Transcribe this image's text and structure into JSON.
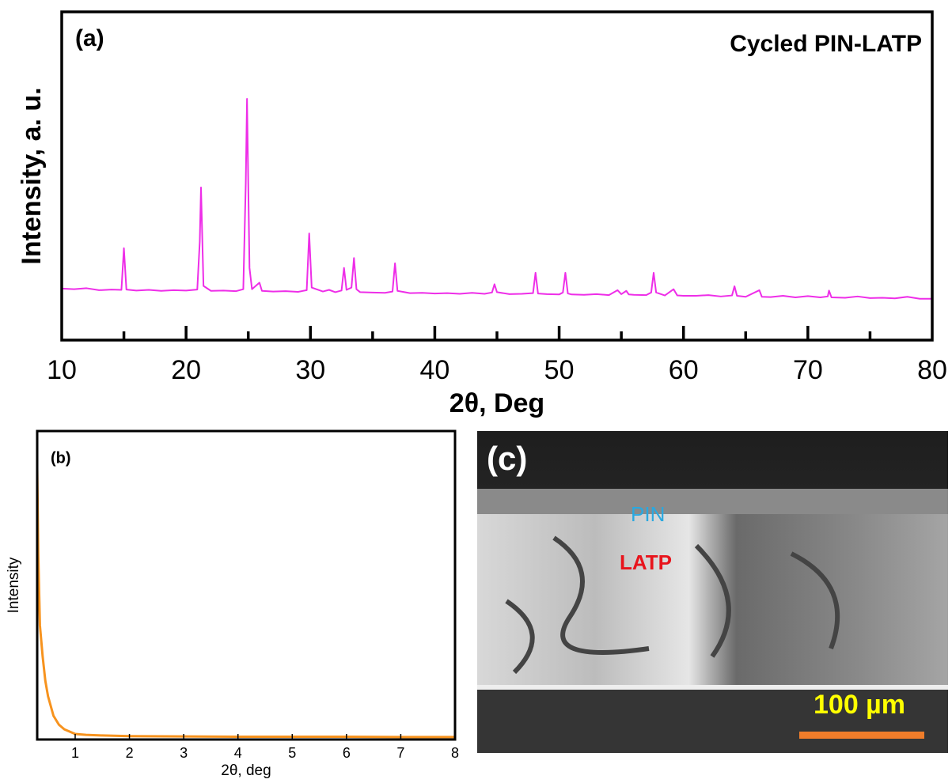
{
  "chart_data": [
    {
      "type": "line",
      "panel_label": "(a)",
      "title": "Cycled PIN-LATP",
      "xlabel": "2θ, Deg",
      "ylabel": "Intensity, a. u.",
      "x": [
        10,
        11,
        12,
        13,
        14,
        14.8,
        15.0,
        15.2,
        16,
        17,
        18,
        19,
        20,
        20.9,
        21.1,
        21.2,
        21.4,
        22,
        23,
        24,
        24.6,
        24.8,
        24.9,
        25.1,
        25.3,
        25.9,
        26.1,
        27,
        28,
        29,
        29.7,
        29.9,
        30.1,
        31,
        31.5,
        32,
        32.5,
        32.7,
        32.9,
        33.3,
        33.5,
        33.7,
        34,
        35,
        36,
        36.6,
        36.8,
        37,
        38,
        39,
        40,
        41,
        42,
        43,
        44,
        44.6,
        44.8,
        45,
        46,
        47,
        47.9,
        48.1,
        48.3,
        49,
        50,
        50.3,
        50.5,
        50.7,
        51,
        52,
        53,
        54,
        54.7,
        55,
        55.4,
        55.6,
        56,
        57,
        57.4,
        57.6,
        57.8,
        58.5,
        59.2,
        59.5,
        60,
        61,
        62,
        63,
        63.9,
        64.1,
        64.3,
        65,
        66.1,
        66.3,
        67,
        68,
        69,
        70,
        71,
        71.6,
        71.7,
        71.9,
        73,
        74,
        75,
        76,
        77,
        78,
        79,
        80
      ],
      "values": [
        15.7,
        15.5,
        15.8,
        15.2,
        15.4,
        15.3,
        28,
        15.4,
        15.1,
        15.3,
        15.0,
        15.2,
        15.1,
        15.4,
        30,
        46.5,
        16.5,
        15.0,
        15.1,
        14.9,
        15.5,
        48,
        73.5,
        22,
        15.5,
        17.5,
        15,
        14.8,
        14.9,
        14.7,
        15.2,
        32.5,
        16,
        14.8,
        15.3,
        14.6,
        15.1,
        22,
        15.3,
        16,
        25,
        15.5,
        14.6,
        14.5,
        14.4,
        14.8,
        23.4,
        15,
        14.3,
        14.4,
        14.2,
        14.3,
        14.1,
        14.4,
        14.1,
        14.5,
        17,
        14.6,
        14.0,
        14.1,
        14.3,
        20.5,
        14.2,
        14.0,
        13.9,
        14.5,
        20.5,
        14.2,
        13.9,
        13.8,
        14.0,
        13.7,
        15.2,
        14,
        15.0,
        13.9,
        13.8,
        13.7,
        14.5,
        20.5,
        14.5,
        13.6,
        15.5,
        13.6,
        13.5,
        13.5,
        13.7,
        13.3,
        13.6,
        16.4,
        13.5,
        13.2,
        15.2,
        13.2,
        13.1,
        13.5,
        13.0,
        13.4,
        13.0,
        13.3,
        15.1,
        13.0,
        12.9,
        13.3,
        12.8,
        12.9,
        12.7,
        13.2,
        12.6,
        12.6
      ],
      "color": "#ee2ee8",
      "xlim": [
        10,
        80
      ],
      "ylim": [
        0,
        100
      ],
      "xticks": [
        10,
        20,
        30,
        40,
        50,
        60,
        70,
        80
      ],
      "xminorticks": [
        15,
        25,
        35,
        45,
        55,
        65,
        75
      ]
    },
    {
      "type": "line",
      "panel_label": "(b)",
      "xlabel": "2θ, deg",
      "ylabel": "Intensity",
      "x": [
        0.3,
        0.32,
        0.35,
        0.4,
        0.45,
        0.5,
        0.6,
        0.7,
        0.8,
        1.0,
        1.2,
        1.5,
        2,
        3,
        4,
        5,
        6,
        7,
        8
      ],
      "values": [
        88,
        60,
        37,
        27,
        19,
        14,
        7.7,
        4.8,
        3.3,
        1.8,
        1.5,
        1.3,
        1.1,
        1.0,
        0.9,
        0.9,
        0.9,
        0.8,
        0.8
      ],
      "color": "#f7931e",
      "xlim": [
        0.3,
        8
      ],
      "ylim": [
        0,
        100
      ],
      "xticks": [
        1,
        2,
        3,
        4,
        5,
        6,
        7,
        8
      ]
    }
  ],
  "sem_image": {
    "panel_label": "(c)",
    "layers": [
      "PIN",
      "LATP"
    ],
    "scale_bar": "100 µm"
  }
}
